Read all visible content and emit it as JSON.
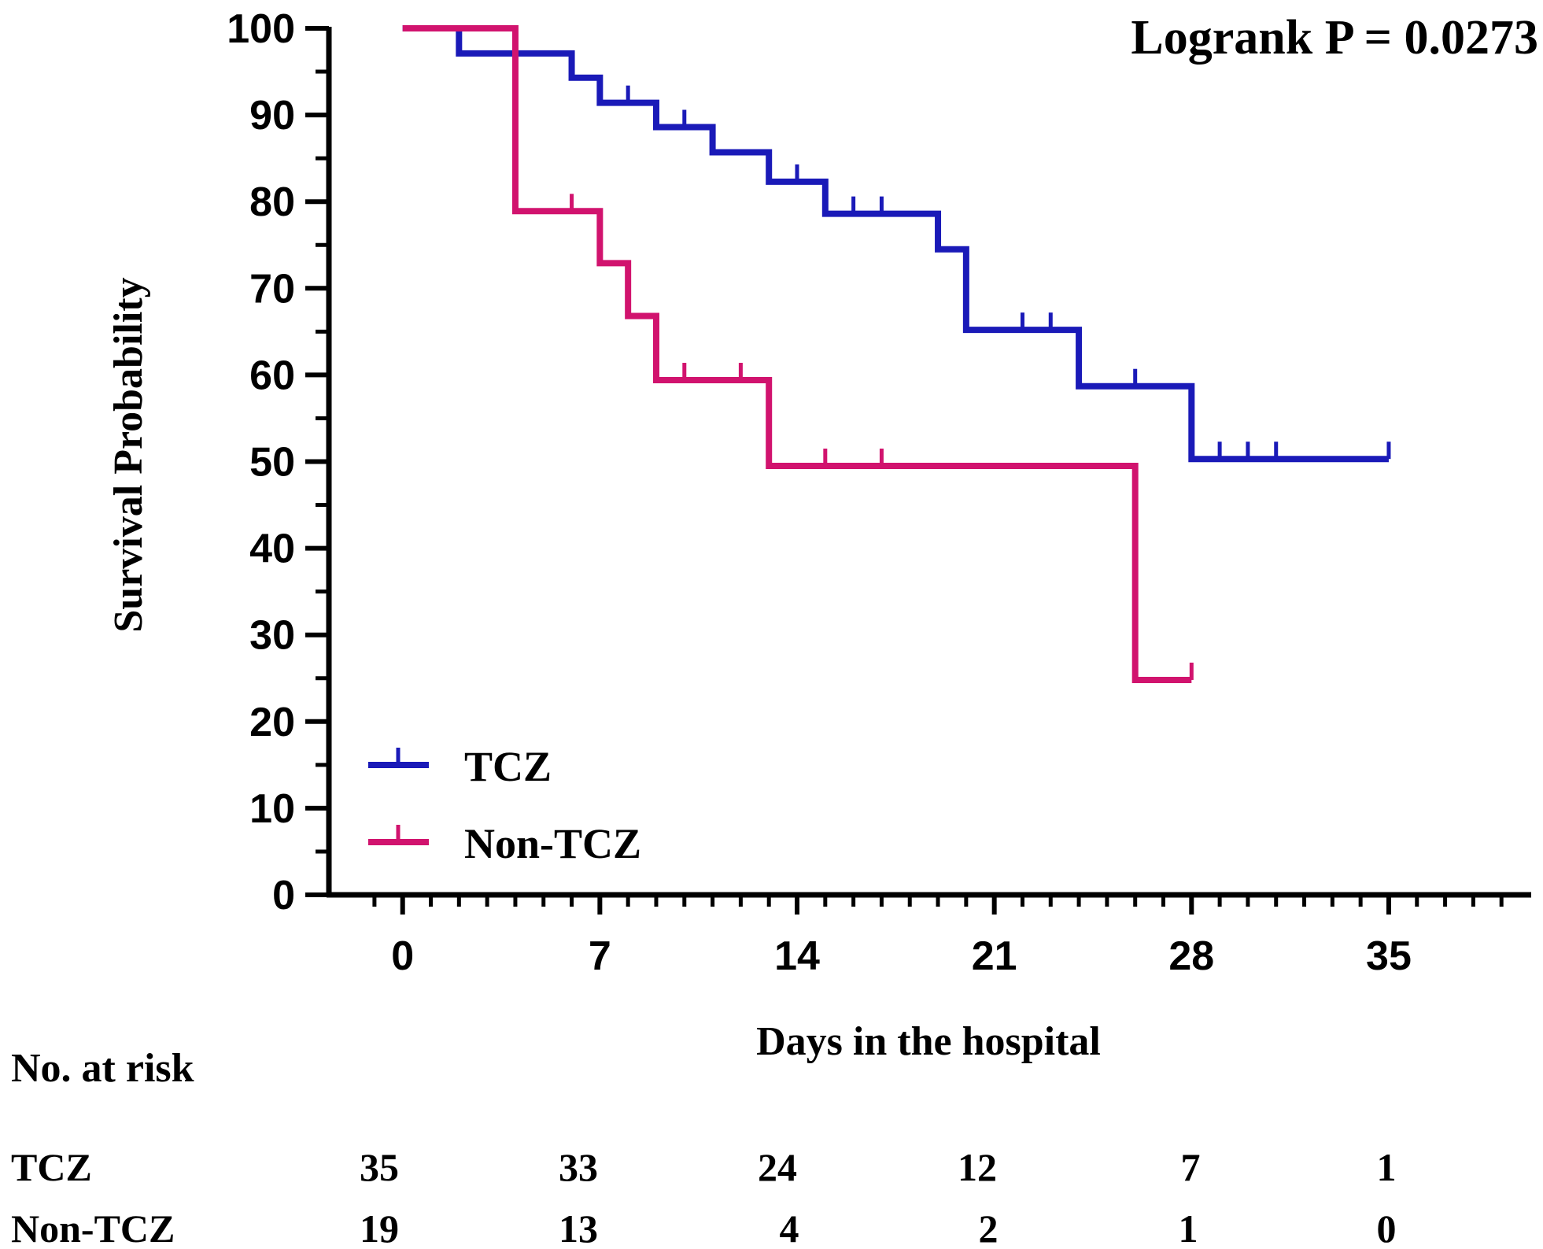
{
  "chart_data": {
    "type": "line",
    "subtype": "kaplan-meier",
    "annotation": "Logrank P = 0.0273",
    "xlabel": "Days in the hospital",
    "ylabel": "Survival Probability",
    "xlim": [
      -1.5,
      40
    ],
    "ylim": [
      0,
      100
    ],
    "xticks": [
      0,
      7,
      14,
      21,
      28,
      35
    ],
    "xtick_labels": [
      "0",
      "7",
      "14",
      "21",
      "28",
      "35"
    ],
    "yticks": [
      0,
      10,
      20,
      30,
      40,
      50,
      60,
      70,
      80,
      90,
      100
    ],
    "ytick_labels": [
      "0",
      "10",
      "20",
      "30",
      "40",
      "50",
      "60",
      "70",
      "80",
      "90",
      "100"
    ],
    "legend": "bottom-left",
    "series": [
      {
        "name": "TCZ",
        "color": "#1a1ab8",
        "steps": [
          [
            0,
            100
          ],
          [
            2,
            97.1
          ],
          [
            6,
            94.3
          ],
          [
            7,
            91.4
          ],
          [
            9,
            88.6
          ],
          [
            11,
            85.7
          ],
          [
            13,
            82.3
          ],
          [
            15,
            78.6
          ],
          [
            19,
            74.5
          ],
          [
            20,
            65.2
          ],
          [
            24,
            58.7
          ],
          [
            28,
            50.3
          ]
        ],
        "end_x": 35,
        "censor": [
          [
            8,
            91.4
          ],
          [
            10,
            88.6
          ],
          [
            14,
            82.3
          ],
          [
            16,
            78.6
          ],
          [
            17,
            78.6
          ],
          [
            22,
            65.2
          ],
          [
            23,
            65.2
          ],
          [
            26,
            58.7
          ],
          [
            29,
            50.3
          ],
          [
            30,
            50.3
          ],
          [
            31,
            50.3
          ],
          [
            35,
            50.3
          ]
        ]
      },
      {
        "name": "Non-TCZ",
        "color": "#d1136e",
        "steps": [
          [
            0,
            100
          ],
          [
            4,
            78.9
          ],
          [
            7,
            72.9
          ],
          [
            8,
            66.8
          ],
          [
            9,
            59.4
          ],
          [
            13,
            49.5
          ],
          [
            26,
            24.8
          ]
        ],
        "end_x": 28,
        "censor": [
          [
            6,
            78.9
          ],
          [
            10,
            59.4
          ],
          [
            12,
            59.4
          ],
          [
            15,
            49.5
          ],
          [
            17,
            49.5
          ],
          [
            28,
            24.8
          ]
        ]
      }
    ],
    "risk_table": {
      "title": "No. at risk",
      "rows": [
        {
          "label": "TCZ",
          "values": [
            "35",
            "33",
            "24",
            "12",
            "7",
            "1"
          ]
        },
        {
          "label": "Non-TCZ",
          "values": [
            "19",
            "13",
            "4",
            "2",
            "1",
            "0"
          ]
        }
      ]
    }
  }
}
